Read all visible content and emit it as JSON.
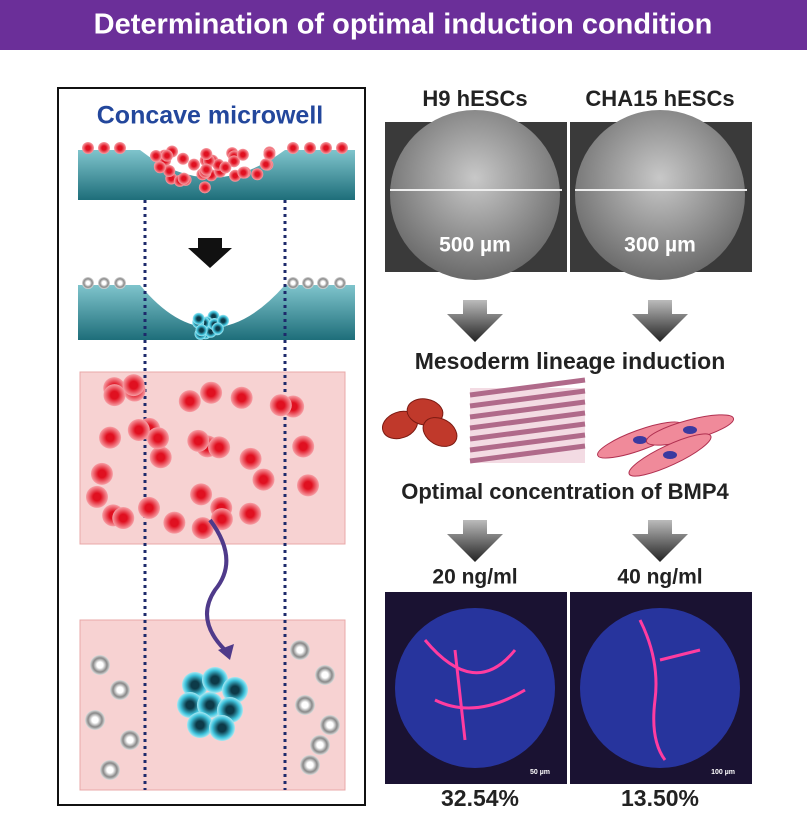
{
  "header": {
    "title": "Determination of optimal induction condition"
  },
  "left_panel": {
    "title": "Concave microwell"
  },
  "right_panel": {
    "columns": [
      {
        "label": "H9 hESCs",
        "well_size": "500 µm",
        "concentration": "20 ng/ml",
        "scale_bar": "50 µm",
        "percentage": "32.54%"
      },
      {
        "label": "CHA15 hESCs",
        "well_size": "300 µm",
        "concentration": "40 ng/ml",
        "scale_bar": "100 µm",
        "percentage": "13.50%"
      }
    ],
    "step1": "Mesoderm lineage induction",
    "step2": "Optimal concentration of BMP4"
  }
}
